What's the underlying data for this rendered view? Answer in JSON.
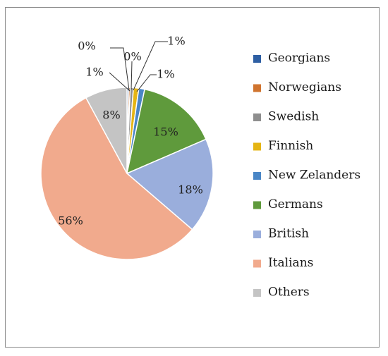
{
  "chart_data": {
    "type": "pie",
    "title": "",
    "slices": [
      {
        "label": "Georgians",
        "value": 0.3,
        "data_label": "0%",
        "color": "#2e5fa3"
      },
      {
        "label": "Norwegians",
        "value": 0.3,
        "data_label": "0%",
        "color": "#d0742f"
      },
      {
        "label": "Swedish",
        "value": 0.6,
        "data_label": "1%",
        "color": "#8e8e8e"
      },
      {
        "label": "Finnish",
        "value": 1.0,
        "data_label": "1%",
        "color": "#e5b514"
      },
      {
        "label": "New Zelanders",
        "value": 1.1,
        "data_label": "1%",
        "color": "#4a86c6"
      },
      {
        "label": "Germans",
        "value": 15.2,
        "data_label": "15%",
        "color": "#5f9a3c"
      },
      {
        "label": "British",
        "value": 17.8,
        "data_label": "18%",
        "color": "#9aaedc"
      },
      {
        "label": "Italians",
        "value": 55.8,
        "data_label": "56%",
        "color": "#f1aa8d"
      },
      {
        "label": "Others",
        "value": 7.9,
        "data_label": "8%",
        "color": "#c4c4c4"
      }
    ],
    "legend_position": "right"
  }
}
